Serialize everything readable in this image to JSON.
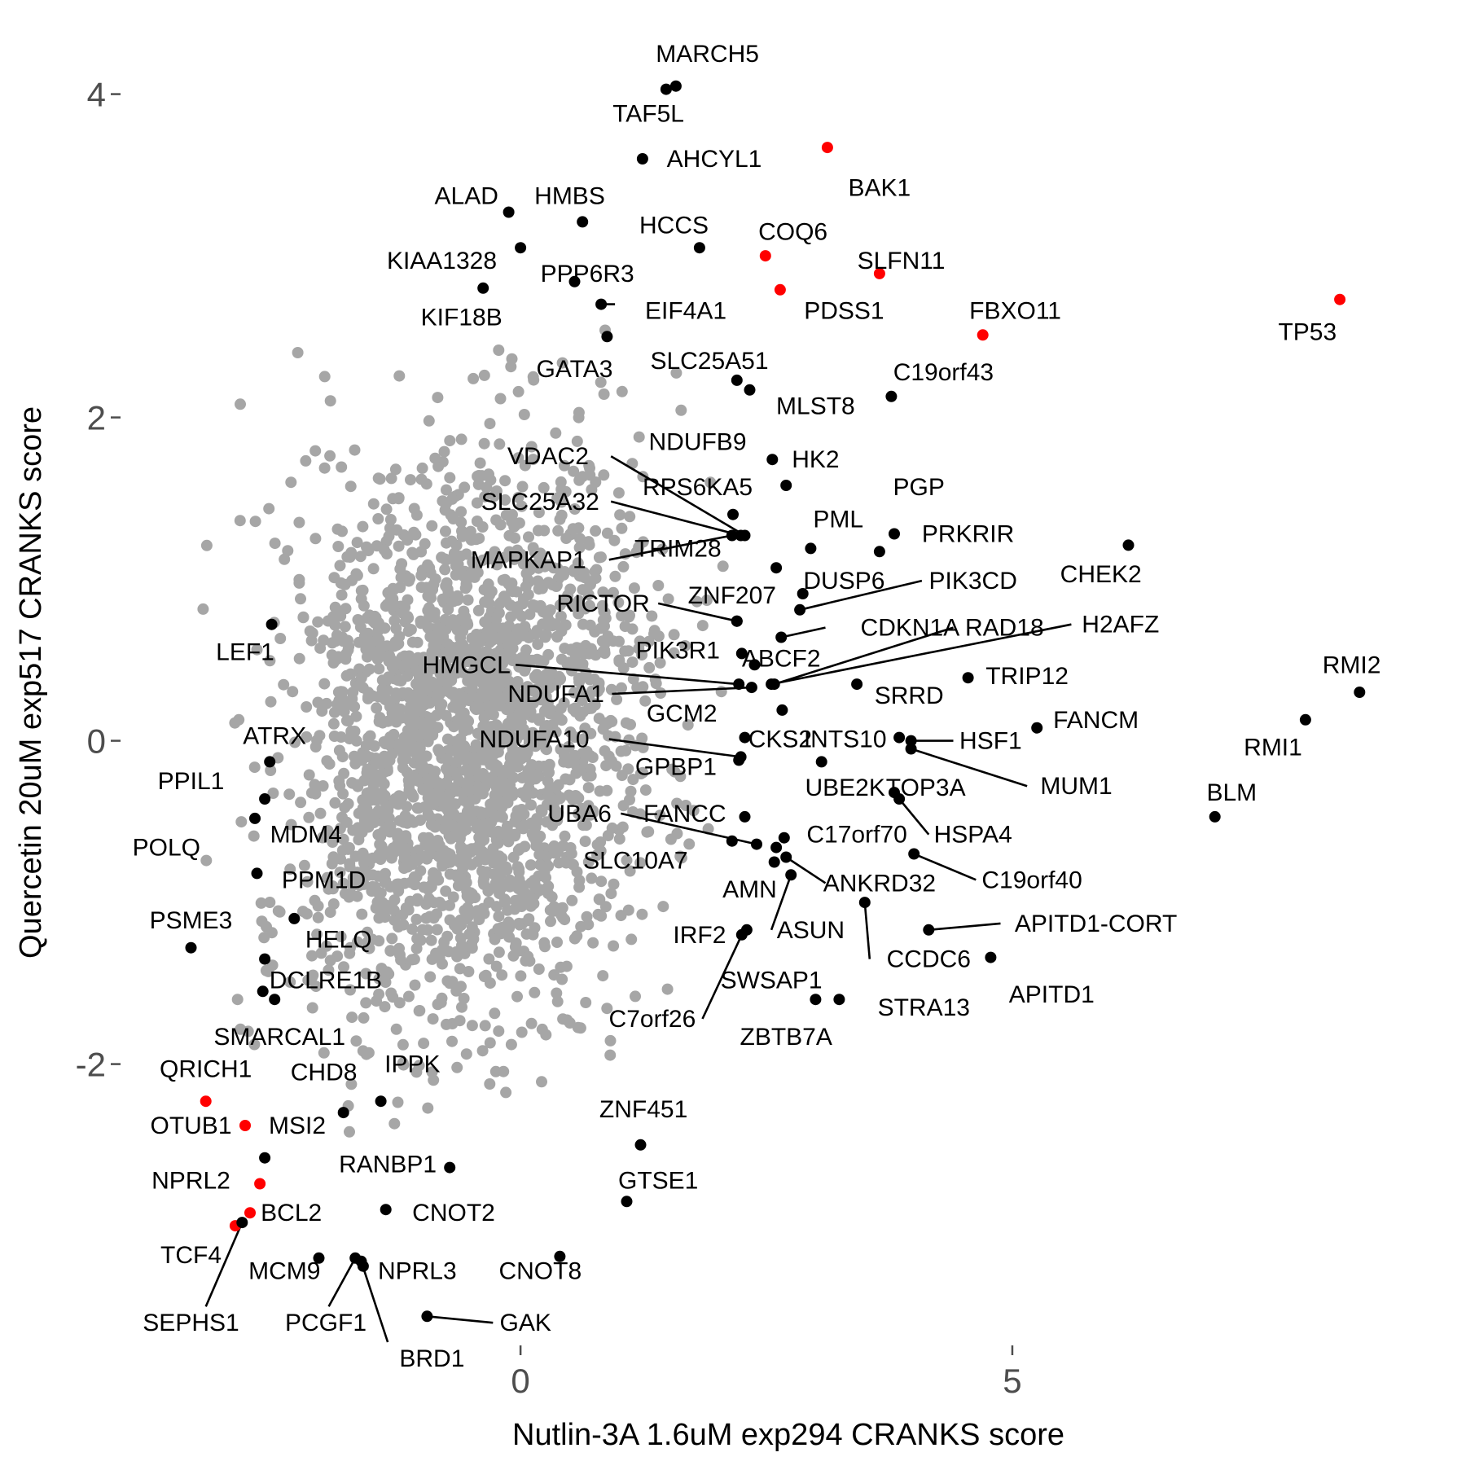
{
  "chart_data": {
    "type": "scatter",
    "xlabel": "Nutlin-3A 1.6uM exp294 CRANKS score",
    "ylabel": "Quercetin 20uM exp517 CRANKS score",
    "xlim": [
      -4.05,
      8.95
    ],
    "ylim": [
      -3.73,
      4.28
    ],
    "x_ticks": [
      {
        "value": 0,
        "label": "0"
      },
      {
        "value": 5,
        "label": "5"
      }
    ],
    "y_ticks": [
      {
        "value": -2,
        "label": "-2"
      },
      {
        "value": 0,
        "label": "0"
      },
      {
        "value": 2,
        "label": "2"
      },
      {
        "value": 4,
        "label": "4"
      }
    ],
    "grid": false,
    "colors": {
      "background": "#ffffff",
      "background_points": "#a6a6a6",
      "highlight_black": "#000000",
      "highlight_red": "#ff0000"
    },
    "background_cloud": {
      "color": "#a6a6a6",
      "center": [
        -0.5,
        0
      ],
      "spread_x": 1.5,
      "spread_y": 0.85,
      "count": 2400
    },
    "points": [
      {
        "name": "MARCH5",
        "x": 1.58,
        "y": 4.05,
        "color": "black",
        "label_x": 1.9,
        "label_y": 4.25
      },
      {
        "name": "TAF5L",
        "x": 1.48,
        "y": 4.03,
        "color": "black",
        "label_x": 1.3,
        "label_y": 3.88
      },
      {
        "name": "AHCYL1",
        "x": 1.24,
        "y": 3.6,
        "color": "black",
        "label_x": 1.97,
        "label_y": 3.6
      },
      {
        "name": "BAK1",
        "x": 3.12,
        "y": 3.67,
        "color": "red",
        "label_x": 3.65,
        "label_y": 3.42
      },
      {
        "name": "ALAD",
        "x": -0.12,
        "y": 3.27,
        "color": "black",
        "label_x": -0.55,
        "label_y": 3.37
      },
      {
        "name": "HMBS",
        "x": 0.63,
        "y": 3.21,
        "color": "black",
        "label_x": 0.5,
        "label_y": 3.37
      },
      {
        "name": "HCCS",
        "x": 1.82,
        "y": 3.05,
        "color": "black",
        "label_x": 1.56,
        "label_y": 3.19
      },
      {
        "name": "COQ6",
        "x": 2.49,
        "y": 3.0,
        "color": "red",
        "label_x": 2.77,
        "label_y": 3.15
      },
      {
        "name": "SLFN11",
        "x": 3.65,
        "y": 2.89,
        "color": "red",
        "label_x": 3.87,
        "label_y": 2.97
      },
      {
        "name": "KIAA1328",
        "x": 0.0,
        "y": 3.05,
        "color": "black",
        "label_x": -0.8,
        "label_y": 2.97
      },
      {
        "name": "PPP6R3",
        "x": 0.55,
        "y": 2.84,
        "color": "black",
        "label_x": 0.68,
        "label_y": 2.89
      },
      {
        "name": "KIF18B",
        "x": -0.38,
        "y": 2.8,
        "color": "black",
        "label_x": -0.6,
        "label_y": 2.62
      },
      {
        "name": "PDSS1",
        "x": 2.64,
        "y": 2.79,
        "color": "red",
        "label_x": 3.29,
        "label_y": 2.66
      },
      {
        "name": "EIF4A1",
        "x": 0.82,
        "y": 2.7,
        "color": "black",
        "label_x": 1.68,
        "label_y": 2.66,
        "line": true,
        "line_x": 0.96,
        "line_y": 2.7
      },
      {
        "name": "FBXO11",
        "x": 4.7,
        "y": 2.51,
        "color": "red",
        "label_x": 5.03,
        "label_y": 2.66
      },
      {
        "name": "TP53",
        "x": 8.33,
        "y": 2.73,
        "color": "red",
        "label_x": 8.0,
        "label_y": 2.53
      },
      {
        "name": "GATA3",
        "x": 0.88,
        "y": 2.5,
        "color": "black",
        "label_x": 0.55,
        "label_y": 2.3
      },
      {
        "name": "SLC25A51",
        "x": 2.2,
        "y": 2.23,
        "color": "black",
        "label_x": 1.92,
        "label_y": 2.35
      },
      {
        "name": "C19orf43",
        "x": 3.77,
        "y": 2.13,
        "color": "black",
        "label_x": 4.3,
        "label_y": 2.28
      },
      {
        "name": "MLST8",
        "x": 2.33,
        "y": 2.17,
        "color": "black",
        "label_x": 3.0,
        "label_y": 2.07
      },
      {
        "name": "NDUFB9",
        "x": 2.56,
        "y": 1.74,
        "color": "black",
        "label_x": 1.8,
        "label_y": 1.85
      },
      {
        "name": "VDAC2",
        "x": 2.28,
        "y": 1.27,
        "color": "black",
        "label_x": 0.28,
        "label_y": 1.76,
        "line": true,
        "line_x": 0.92,
        "line_y": 1.76
      },
      {
        "name": "HK2",
        "x": 2.7,
        "y": 1.58,
        "color": "black",
        "label_x": 3.0,
        "label_y": 1.74
      },
      {
        "name": "RPS6KA5",
        "x": 2.16,
        "y": 1.4,
        "color": "black",
        "label_x": 1.8,
        "label_y": 1.57
      },
      {
        "name": "PGP",
        "x": 3.8,
        "y": 1.28,
        "color": "black",
        "label_x": 4.05,
        "label_y": 1.57
      },
      {
        "name": "SLC25A32",
        "x": 2.24,
        "y": 1.27,
        "color": "black",
        "label_x": 0.2,
        "label_y": 1.48,
        "line": true,
        "line_x": 0.92,
        "line_y": 1.48
      },
      {
        "name": "PML",
        "x": 2.95,
        "y": 1.19,
        "color": "black",
        "label_x": 3.23,
        "label_y": 1.37
      },
      {
        "name": "PRKRIR",
        "x": 3.65,
        "y": 1.17,
        "color": "black",
        "label_x": 4.55,
        "label_y": 1.28
      },
      {
        "name": "CHEK2",
        "x": 6.18,
        "y": 1.21,
        "color": "black",
        "label_x": 5.9,
        "label_y": 1.03
      },
      {
        "name": "TRIM28",
        "x": 2.6,
        "y": 1.07,
        "color": "black",
        "label_x": 1.6,
        "label_y": 1.19
      },
      {
        "name": "MAPKAP1",
        "x": 2.15,
        "y": 1.27,
        "color": "black",
        "label_x": 0.08,
        "label_y": 1.12,
        "line": true,
        "line_x": 0.9,
        "line_y": 1.12
      },
      {
        "name": "DUSP6",
        "x": 2.87,
        "y": 0.91,
        "color": "black",
        "label_x": 3.29,
        "label_y": 0.99
      },
      {
        "name": "PIK3CD",
        "x": 2.84,
        "y": 0.81,
        "color": "black",
        "label_x": 4.6,
        "label_y": 0.99,
        "line": true,
        "line_x": 4.08,
        "line_y": 0.99
      },
      {
        "name": "ZNF207",
        "x": 2.2,
        "y": 0.74,
        "color": "black",
        "label_x": 2.15,
        "label_y": 0.9
      },
      {
        "name": "RICTOR",
        "x": 2.2,
        "y": 0.74,
        "color": "black",
        "label_x": 0.84,
        "label_y": 0.85,
        "line": true,
        "line_x": 1.4,
        "line_y": 0.85
      },
      {
        "name": "CDKN1A",
        "x": 2.65,
        "y": 0.64,
        "color": "black",
        "label_x": 3.96,
        "label_y": 0.7,
        "line": true,
        "line_x": 3.1,
        "line_y": 0.7
      },
      {
        "name": "RAD18",
        "x": 2.58,
        "y": 0.35,
        "color": "black",
        "label_x": 4.92,
        "label_y": 0.7,
        "line": true,
        "line_x": 4.4,
        "line_y": 0.7
      },
      {
        "name": "H2AFZ",
        "x": 2.55,
        "y": 0.35,
        "color": "black",
        "label_x": 6.1,
        "label_y": 0.72,
        "line": true,
        "line_x": 5.6,
        "line_y": 0.72
      },
      {
        "name": "PIK3R1",
        "x": 2.25,
        "y": 0.54,
        "color": "black",
        "label_x": 1.6,
        "label_y": 0.56
      },
      {
        "name": "ABCF2",
        "x": 2.38,
        "y": 0.47,
        "color": "black",
        "label_x": 2.65,
        "label_y": 0.51
      },
      {
        "name": "RMI2",
        "x": 8.53,
        "y": 0.3,
        "color": "black",
        "label_x": 8.45,
        "label_y": 0.47
      },
      {
        "name": "HMGCL",
        "x": 2.22,
        "y": 0.35,
        "color": "black",
        "label_x": -0.55,
        "label_y": 0.47,
        "line": true,
        "line_x": -0.05,
        "line_y": 0.47
      },
      {
        "name": "TRIP12",
        "x": 4.55,
        "y": 0.39,
        "color": "black",
        "label_x": 5.15,
        "label_y": 0.4
      },
      {
        "name": "SRRD",
        "x": 3.42,
        "y": 0.35,
        "color": "black",
        "label_x": 3.95,
        "label_y": 0.28
      },
      {
        "name": "NDUFA1",
        "x": 2.35,
        "y": 0.33,
        "color": "black",
        "label_x": 0.36,
        "label_y": 0.29,
        "line": true,
        "line_x": 0.93,
        "line_y": 0.29
      },
      {
        "name": "GCM2",
        "x": 2.66,
        "y": 0.19,
        "color": "black",
        "label_x": 1.64,
        "label_y": 0.17
      },
      {
        "name": "FANCM",
        "x": 5.25,
        "y": 0.08,
        "color": "black",
        "label_x": 5.85,
        "label_y": 0.13
      },
      {
        "name": "RMI1",
        "x": 7.98,
        "y": 0.13,
        "color": "black",
        "label_x": 7.65,
        "label_y": -0.04
      },
      {
        "name": "CKS2",
        "x": 2.28,
        "y": 0.02,
        "color": "black",
        "label_x": 2.64,
        "label_y": 0.01
      },
      {
        "name": "INTS10",
        "x": 3.85,
        "y": 0.02,
        "color": "black",
        "label_x": 3.3,
        "label_y": 0.01
      },
      {
        "name": "HSF1",
        "x": 3.97,
        "y": 0.0,
        "color": "black",
        "label_x": 4.78,
        "label_y": 0.0,
        "line": true,
        "line_x": 4.4,
        "line_y": 0.0
      },
      {
        "name": "NDUFA10",
        "x": 2.24,
        "y": -0.1,
        "color": "black",
        "label_x": 0.14,
        "label_y": 0.01,
        "line": true,
        "line_x": 0.9,
        "line_y": 0.01
      },
      {
        "name": "MUM1",
        "x": 3.97,
        "y": -0.05,
        "color": "black",
        "label_x": 5.65,
        "label_y": -0.28,
        "line": true,
        "line_x": 5.15,
        "line_y": -0.28
      },
      {
        "name": "GPBP1",
        "x": 2.22,
        "y": -0.12,
        "color": "black",
        "label_x": 1.58,
        "label_y": -0.16
      },
      {
        "name": "BLM",
        "x": 7.06,
        "y": -0.47,
        "color": "black",
        "label_x": 7.23,
        "label_y": -0.32
      },
      {
        "name": "UBE2K",
        "x": 3.06,
        "y": -0.13,
        "color": "black",
        "label_x": 3.3,
        "label_y": -0.29
      },
      {
        "name": "TOP3A",
        "x": 3.8,
        "y": -0.32,
        "color": "black",
        "label_x": 4.12,
        "label_y": -0.29
      },
      {
        "name": "HSPA4",
        "x": 3.85,
        "y": -0.36,
        "color": "black",
        "label_x": 4.6,
        "label_y": -0.58,
        "line": true,
        "line_x": 4.15,
        "line_y": -0.58
      },
      {
        "name": "FANCC",
        "x": 2.28,
        "y": -0.47,
        "color": "black",
        "label_x": 1.67,
        "label_y": -0.45
      },
      {
        "name": "UBA6",
        "x": 2.4,
        "y": -0.64,
        "color": "black",
        "label_x": 0.6,
        "label_y": -0.45,
        "line": true,
        "line_x": 1.02,
        "line_y": -0.45
      },
      {
        "name": "C17orf70",
        "x": 2.68,
        "y": -0.6,
        "color": "black",
        "label_x": 3.42,
        "label_y": -0.58
      },
      {
        "name": "SLC10A7",
        "x": 2.15,
        "y": -0.62,
        "color": "black",
        "label_x": 1.17,
        "label_y": -0.74
      },
      {
        "name": "C19orf40",
        "x": 4.0,
        "y": -0.7,
        "color": "black",
        "label_x": 5.2,
        "label_y": -0.86,
        "line": true,
        "line_x": 4.63,
        "line_y": -0.86
      },
      {
        "name": "ANKRD32",
        "x": 2.7,
        "y": -0.72,
        "color": "black",
        "label_x": 3.65,
        "label_y": -0.88,
        "line": true,
        "line_x": 3.1,
        "line_y": -0.88
      },
      {
        "name": "AMN",
        "x": 2.6,
        "y": -0.66,
        "color": "black",
        "label_x": 2.33,
        "label_y": -0.92
      },
      {
        "name": "ASUN",
        "x": 2.75,
        "y": -0.83,
        "color": "black",
        "label_x": 2.95,
        "label_y": -1.17,
        "line": true,
        "line_x": 2.55,
        "line_y": -1.17
      },
      {
        "name": "APITD1-CORT",
        "x": 4.15,
        "y": -1.17,
        "color": "black",
        "label_x": 5.85,
        "label_y": -1.13,
        "line": true,
        "line_x": 4.88,
        "line_y": -1.13
      },
      {
        "name": "IRF2",
        "x": 2.3,
        "y": -1.17,
        "color": "black",
        "label_x": 1.82,
        "label_y": -1.2
      },
      {
        "name": "CCDC6",
        "x": 3.5,
        "y": -1.0,
        "color": "black",
        "label_x": 4.15,
        "label_y": -1.35,
        "line": true,
        "line_x": 3.55,
        "line_y": -1.35
      },
      {
        "name": "APITD1",
        "x": 4.78,
        "y": -1.34,
        "color": "black",
        "label_x": 5.4,
        "label_y": -1.57
      },
      {
        "name": "SWSAP1",
        "x": 2.58,
        "y": -0.75,
        "color": "black",
        "label_x": 2.55,
        "label_y": -1.48
      },
      {
        "name": "STRA13",
        "x": 3.24,
        "y": -1.6,
        "color": "black",
        "label_x": 4.1,
        "label_y": -1.65
      },
      {
        "name": "C7orf26",
        "x": 2.25,
        "y": -1.2,
        "color": "black",
        "label_x": 1.34,
        "label_y": -1.72,
        "line": true,
        "line_x": 1.85,
        "line_y": -1.72
      },
      {
        "name": "ZBTB7A",
        "x": 3.0,
        "y": -1.6,
        "color": "black",
        "label_x": 2.7,
        "label_y": -1.83
      },
      {
        "name": "LEF1",
        "x": -2.53,
        "y": 0.72,
        "color": "black",
        "label_x": -2.8,
        "label_y": 0.55
      },
      {
        "name": "ATRX",
        "x": -2.55,
        "y": -0.13,
        "color": "black",
        "label_x": -2.5,
        "label_y": 0.03
      },
      {
        "name": "PPIL1",
        "x": -2.6,
        "y": -0.36,
        "color": "black",
        "label_x": -3.35,
        "label_y": -0.25
      },
      {
        "name": "MDM4",
        "x": -2.7,
        "y": -0.48,
        "color": "black",
        "label_x": -2.18,
        "label_y": -0.58
      },
      {
        "name": "POLQ",
        "x": -2.68,
        "y": -0.82,
        "color": "black",
        "label_x": -3.6,
        "label_y": -0.66
      },
      {
        "name": "PPM1D",
        "x": -2.3,
        "y": -1.1,
        "color": "black",
        "label_x": -2.0,
        "label_y": -0.86
      },
      {
        "name": "PSME3",
        "x": -3.35,
        "y": -1.28,
        "color": "black",
        "label_x": -3.35,
        "label_y": -1.11
      },
      {
        "name": "HELQ",
        "x": -2.6,
        "y": -1.35,
        "color": "black",
        "label_x": -1.85,
        "label_y": -1.23
      },
      {
        "name": "DCLRE1B",
        "x": -2.62,
        "y": -1.55,
        "color": "black",
        "label_x": -1.98,
        "label_y": -1.48
      },
      {
        "name": "SMARCAL1",
        "x": -2.5,
        "y": -1.6,
        "color": "black",
        "label_x": -2.45,
        "label_y": -1.83
      },
      {
        "name": "QRICH1",
        "x": -3.2,
        "y": -2.23,
        "color": "red",
        "label_x": -3.2,
        "label_y": -2.03
      },
      {
        "name": "CHD8",
        "x": -1.8,
        "y": -2.3,
        "color": "black",
        "label_x": -2.0,
        "label_y": -2.05
      },
      {
        "name": "IPPK",
        "x": -1.42,
        "y": -2.23,
        "color": "black",
        "label_x": -1.1,
        "label_y": -2.0
      },
      {
        "name": "OTUB1",
        "x": -2.8,
        "y": -2.38,
        "color": "red",
        "label_x": -3.35,
        "label_y": -2.38
      },
      {
        "name": "MSI2",
        "x": -2.6,
        "y": -2.58,
        "color": "black",
        "label_x": -2.27,
        "label_y": -2.38
      },
      {
        "name": "ZNF451",
        "x": 1.22,
        "y": -2.5,
        "color": "black",
        "label_x": 1.25,
        "label_y": -2.28
      },
      {
        "name": "GTSE1",
        "x": 1.08,
        "y": -2.85,
        "color": "black",
        "label_x": 1.4,
        "label_y": -2.72
      },
      {
        "name": "RANBP1",
        "x": -0.72,
        "y": -2.64,
        "color": "black",
        "label_x": -1.35,
        "label_y": -2.62
      },
      {
        "name": "NPRL2",
        "x": -2.65,
        "y": -2.74,
        "color": "red",
        "label_x": -3.35,
        "label_y": -2.72
      },
      {
        "name": "BCL2",
        "x": -2.75,
        "y": -2.92,
        "color": "red",
        "label_x": -2.33,
        "label_y": -2.92
      },
      {
        "name": "CNOT2",
        "x": -1.37,
        "y": -2.9,
        "color": "black",
        "label_x": -0.68,
        "label_y": -2.92
      },
      {
        "name": "TCF4",
        "x": -2.9,
        "y": -3.0,
        "color": "red",
        "label_x": -3.35,
        "label_y": -3.18
      },
      {
        "name": "MCM9",
        "x": -2.05,
        "y": -3.2,
        "color": "black",
        "label_x": -2.4,
        "label_y": -3.28
      },
      {
        "name": "NPRL3",
        "x": -1.6,
        "y": -3.25,
        "color": "black",
        "label_x": -1.05,
        "label_y": -3.28
      },
      {
        "name": "CNOT8",
        "x": 0.4,
        "y": -3.19,
        "color": "black",
        "label_x": 0.2,
        "label_y": -3.28
      },
      {
        "name": "GAK",
        "x": -0.95,
        "y": -3.56,
        "color": "black",
        "label_x": 0.05,
        "label_y": -3.6,
        "line": true,
        "line_x": -0.28,
        "line_y": -3.6
      },
      {
        "name": "SEPHS1",
        "x": -2.83,
        "y": -2.98,
        "color": "black",
        "label_x": -3.35,
        "label_y": -3.6,
        "line": true,
        "line_x": -3.2,
        "line_y": -3.5
      },
      {
        "name": "PCGF1",
        "x": -1.68,
        "y": -3.2,
        "color": "black",
        "label_x": -1.98,
        "label_y": -3.6,
        "line": true,
        "line_x": -1.95,
        "line_y": -3.5
      },
      {
        "name": "BRD1",
        "x": -1.62,
        "y": -3.22,
        "color": "black",
        "label_x": -0.9,
        "label_y": -3.82,
        "line": true,
        "line_x": -1.35,
        "line_y": -3.72
      }
    ]
  }
}
